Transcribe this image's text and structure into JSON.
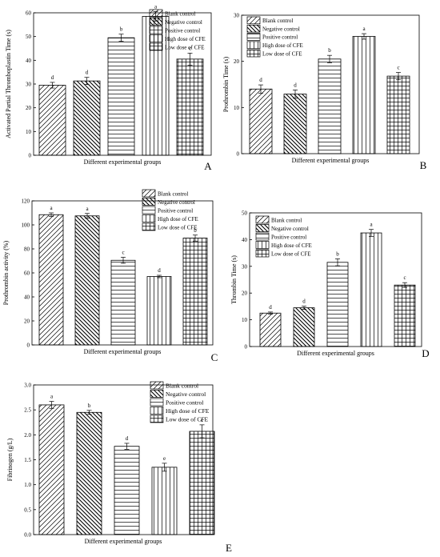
{
  "chart_data": [
    {
      "panel": "A",
      "type": "bar",
      "ylabel": "Activated Partial Thromboplastin Time (s)",
      "xlabel": "Different experimental groups",
      "ylim": [
        0,
        60
      ],
      "yticks": [
        0,
        10,
        20,
        30,
        40,
        50,
        60
      ],
      "categories": [
        "Blank control",
        "Negative control",
        "Positive control",
        "High dose of CFE",
        "Low dose of CFE"
      ],
      "values": [
        29.5,
        31.3,
        49.5,
        58.5,
        40.5
      ],
      "errors": [
        1.2,
        1.5,
        1.5,
        2.0,
        2.5
      ],
      "letters": [
        "d",
        "d",
        "b",
        "a",
        "c"
      ],
      "legend": [
        "Blank control",
        "Negative control",
        "Positive control",
        "High dose of CFE",
        "Low dose of CFE"
      ],
      "legend_position": "top-right"
    },
    {
      "panel": "B",
      "type": "bar",
      "ylabel": "Prothrombin Time (s)",
      "xlabel": "Different experimental groups",
      "ylim": [
        0,
        30
      ],
      "yticks": [
        0,
        10,
        20,
        30
      ],
      "categories": [
        "Blank control",
        "Negative control",
        "Positive control",
        "High dose of CFE",
        "Low dose of CFE"
      ],
      "values": [
        14.0,
        12.9,
        20.5,
        25.4,
        16.8
      ],
      "errors": [
        0.9,
        0.9,
        0.8,
        0.6,
        0.8
      ],
      "letters": [
        "d",
        "d",
        "b",
        "a",
        "c"
      ],
      "legend": [
        "Blank control",
        "Negative control",
        "Positive control",
        "High dose of CFE",
        "Low dose of CFE"
      ],
      "legend_position": "top-left"
    },
    {
      "panel": "C",
      "type": "bar",
      "ylabel": "Prothrombin activity (%)",
      "xlabel": "Different experimental groups",
      "ylim": [
        0,
        120
      ],
      "yticks": [
        0,
        20,
        40,
        60,
        80,
        100,
        120
      ],
      "categories": [
        "Blank control",
        "Negative control",
        "Positive control",
        "High dose of CFE",
        "Low dose of CFE"
      ],
      "values": [
        108.5,
        107.5,
        70.5,
        57.0,
        89.0
      ],
      "errors": [
        1.5,
        2.0,
        2.5,
        1.0,
        2.5
      ],
      "letters": [
        "a",
        "a",
        "c",
        "d",
        "b"
      ],
      "legend": [
        "Blank control",
        "Negative control",
        "Positive control",
        "High dose of CFE",
        "Low dose of CFE"
      ],
      "legend_position": "top-right"
    },
    {
      "panel": "D",
      "type": "bar",
      "ylabel": "Thrombin Time (s)",
      "xlabel": "Different experimental groups",
      "ylim": [
        0,
        50
      ],
      "yticks": [
        0,
        10,
        20,
        30,
        40,
        50
      ],
      "categories": [
        "Blank control",
        "Negative control",
        "Positive control",
        "High dose of CFE",
        "Low dose of CFE"
      ],
      "values": [
        12.5,
        14.5,
        31.5,
        42.5,
        23.0
      ],
      "errors": [
        0.4,
        0.6,
        1.3,
        1.3,
        0.9
      ],
      "letters": [
        "d",
        "d",
        "b",
        "a",
        "c"
      ],
      "legend": [
        "Blank control",
        "Negative control",
        "Positive control",
        "High dose of CFE",
        "Low dose of CFE"
      ],
      "legend_position": "top-left"
    },
    {
      "panel": "E",
      "type": "bar",
      "ylabel": "Fibrinogen (g/L)",
      "xlabel": "Different experimental groups",
      "ylim": [
        0,
        3.0
      ],
      "yticks": [
        "0.0",
        "0.5",
        "1.0",
        "1.5",
        "2.0",
        "2.5",
        "3.0"
      ],
      "categories": [
        "Blank control",
        "Negative control",
        "Positive control",
        "High dose of CFE",
        "Low dose of CFE"
      ],
      "values": [
        2.6,
        2.45,
        1.77,
        1.35,
        2.07
      ],
      "errors": [
        0.07,
        0.04,
        0.06,
        0.08,
        0.13
      ],
      "letters": [
        "a",
        "b",
        "d",
        "e",
        "c"
      ],
      "legend": [
        "Blank control",
        "Negative control",
        "Positive control",
        "High dose of CFE",
        "Low dose of CFE"
      ],
      "legend_position": "top-right"
    }
  ],
  "colors": {
    "line": "#000000",
    "fill": "#ffffff"
  },
  "patterns": [
    "diagonal-hatch",
    "reverse-diagonal-hatch",
    "horizontal-lines",
    "vertical-lines",
    "crosshatch"
  ]
}
